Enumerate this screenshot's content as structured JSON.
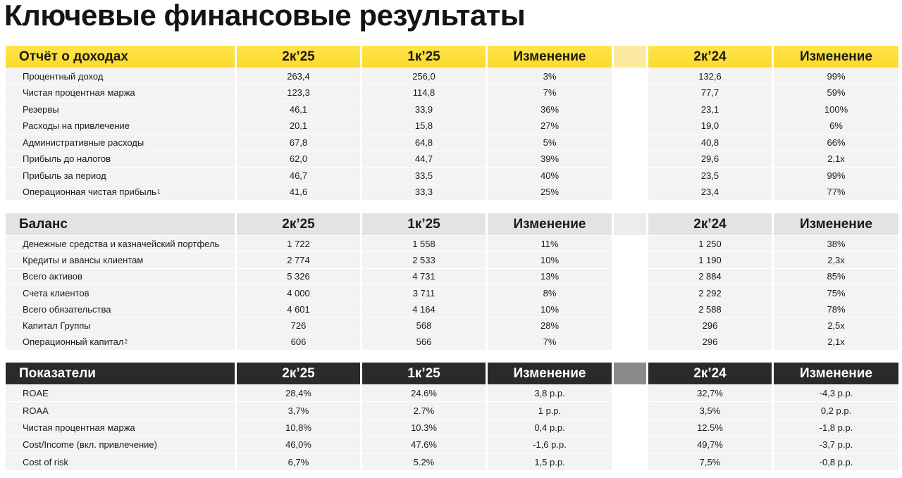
{
  "title": "Ключевые финансовые результаты",
  "tables": [
    {
      "header": [
        "Отчёт о доходах",
        "2к’25",
        "1к’25",
        "Изменение",
        "2к’24",
        "Изменение"
      ],
      "rows": [
        {
          "label": "Процентный доход",
          "values": [
            "263,4",
            "256,0",
            "3%",
            "132,6",
            "99%"
          ]
        },
        {
          "label": "Чистая процентная маржа",
          "values": [
            "123,3",
            "114,8",
            "7%",
            "77,7",
            "59%"
          ]
        },
        {
          "label": "Резервы",
          "values": [
            "46,1",
            "33,9",
            "36%",
            "23,1",
            "100%"
          ]
        },
        {
          "label": "Расходы на привлечение",
          "values": [
            "20,1",
            "15,8",
            "27%",
            "19,0",
            "6%"
          ]
        },
        {
          "label": "Административные расходы",
          "values": [
            "67,8",
            "64,8",
            "5%",
            "40,8",
            "66%"
          ]
        },
        {
          "label": "Прибыль до налогов",
          "values": [
            "62,0",
            "44,7",
            "39%",
            "29,6",
            "2,1x"
          ]
        },
        {
          "label": "Прибыль за период",
          "values": [
            "46,7",
            "33,5",
            "40%",
            "23,5",
            "99%"
          ]
        },
        {
          "label": "Операционная чистая прибыль",
          "note": "1",
          "values": [
            "41,6",
            "33,3",
            "25%",
            "23,4",
            "77%"
          ]
        }
      ]
    },
    {
      "header": [
        "Баланс",
        "2к’25",
        "1к’25",
        "Изменение",
        "2к’24",
        "Изменение"
      ],
      "rows": [
        {
          "label": "Денежные средства и казначейский портфель",
          "values": [
            "1 722",
            "1 558",
            "11%",
            "1 250",
            "38%"
          ]
        },
        {
          "label": "Кредиты и авансы клиентам",
          "values": [
            "2 774",
            "2 533",
            "10%",
            "1 190",
            "2,3x"
          ]
        },
        {
          "label": "Всего активов",
          "values": [
            "5 326",
            "4 731",
            "13%",
            "2 884",
            "85%"
          ]
        },
        {
          "label": "Счета клиентов",
          "values": [
            "4 000",
            "3 711",
            "8%",
            "2 292",
            "75%"
          ]
        },
        {
          "label": "Всего обязательства",
          "values": [
            "4 601",
            "4 164",
            "10%",
            "2 588",
            "78%"
          ]
        },
        {
          "label": "Капитал Группы",
          "values": [
            "726",
            "568",
            "28%",
            "296",
            "2,5x"
          ]
        },
        {
          "label": "Операционный капитал",
          "note": "2",
          "values": [
            "606",
            "566",
            "7%",
            "296",
            "2,1x"
          ]
        }
      ]
    },
    {
      "header": [
        "Показатели",
        "2к’25",
        "1к’25",
        "Изменение",
        "2к’24",
        "Изменение"
      ],
      "rows": [
        {
          "label": "ROAE",
          "values": [
            "28,4%",
            "24.6%",
            "3,8 p.p.",
            "32,7%",
            "-4,3 p.p."
          ]
        },
        {
          "label": "ROAA",
          "values": [
            "3,7%",
            "2.7%",
            "1 p.p.",
            "3,5%",
            "0,2 p.p."
          ]
        },
        {
          "label": "Чистая процентная маржа",
          "values": [
            "10,8%",
            "10.3%",
            "0,4 p.p.",
            "12.5%",
            "-1,8 p.p."
          ]
        },
        {
          "label": "Cost/Income (вкл. привлечение)",
          "values": [
            "46,0%",
            "47.6%",
            "-1,6 p.p.",
            "49,7%",
            "-3,7 p.p."
          ]
        },
        {
          "label": "Cost of risk",
          "values": [
            "6,7%",
            "5.2%",
            "1,5 p.p.",
            "7,5%",
            "-0,8 p.p."
          ]
        }
      ]
    }
  ]
}
